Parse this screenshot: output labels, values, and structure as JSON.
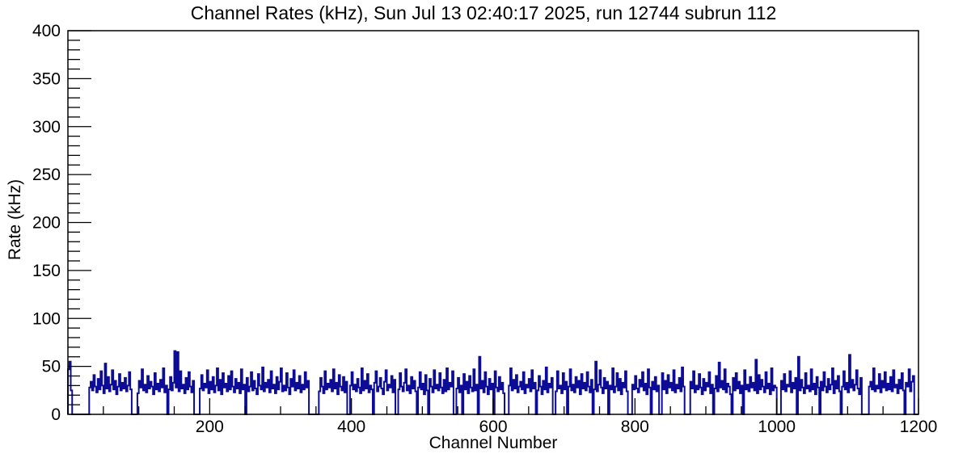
{
  "chart_data": {
    "type": "line",
    "style": "histogram-step",
    "title": "Channel Rates (kHz), Sun Jul 13 02:40:17 2025, run 12744 subrun 112",
    "xlabel": "Channel Number",
    "ylabel": "Rate (kHz)",
    "xlim": [
      0,
      1200
    ],
    "ylim": [
      0,
      400
    ],
    "xticks_major": [
      200,
      400,
      600,
      800,
      1000,
      1200
    ],
    "xticks_minor_step": 50,
    "yticks_major": [
      0,
      50,
      100,
      150,
      200,
      250,
      300,
      350,
      400
    ],
    "yticks_minor_step": 10,
    "grid": "off",
    "legend": "none",
    "line_color": "#0c0c96",
    "frame_color": "#000000",
    "x_start": 0,
    "x_step": 2,
    "values": [
      47,
      55,
      25,
      0,
      0,
      0,
      0,
      0,
      0,
      0,
      0,
      0,
      0,
      0,
      0,
      28,
      34,
      25,
      41,
      29,
      23,
      37,
      26,
      45,
      30,
      22,
      53,
      27,
      39,
      24,
      31,
      46,
      26,
      35,
      21,
      29,
      42,
      25,
      33,
      27,
      38,
      24,
      30,
      44,
      26,
      0,
      0,
      0,
      0,
      22,
      35,
      28,
      47,
      25,
      31,
      23,
      40,
      27,
      34,
      29,
      21,
      43,
      26,
      32,
      24,
      36,
      28,
      48,
      23,
      30,
      0,
      26,
      39,
      25,
      33,
      66,
      28,
      65,
      24,
      45,
      27,
      31,
      22,
      38,
      26,
      44,
      29,
      23,
      35,
      0,
      0,
      0,
      0,
      27,
      41,
      25,
      32,
      28,
      46,
      22,
      34,
      26,
      39,
      23,
      30,
      48,
      25,
      36,
      21,
      43,
      28,
      32,
      24,
      40,
      26,
      45,
      29,
      23,
      37,
      27,
      33,
      22,
      47,
      26,
      31,
      0,
      38,
      24,
      29,
      44,
      25,
      35,
      27,
      21,
      42,
      30,
      26,
      49,
      24,
      33,
      28,
      36,
      23,
      45,
      27,
      31,
      22,
      39,
      26,
      34,
      48,
      24,
      30,
      25,
      43,
      28,
      21,
      37,
      29,
      46,
      25,
      33,
      27,
      40,
      23,
      31,
      26,
      44,
      28,
      35,
      0,
      0,
      0,
      0,
      0,
      0,
      0,
      24,
      38,
      29,
      22,
      45,
      26,
      32,
      28,
      36,
      24,
      47,
      27,
      33,
      21,
      41,
      29,
      25,
      39,
      23,
      34,
      0,
      0,
      30,
      44,
      26,
      31,
      24,
      37,
      28,
      22,
      48,
      25,
      35,
      27,
      42,
      23,
      30,
      26,
      0,
      33,
      45,
      24,
      29,
      38,
      27,
      21,
      34,
      46,
      25,
      31,
      28,
      40,
      23,
      36,
      0,
      0,
      26,
      43,
      29,
      24,
      33,
      47,
      25,
      30,
      22,
      39,
      27,
      35,
      24,
      0,
      28,
      44,
      26,
      32,
      21,
      41,
      25,
      0,
      37,
      29,
      23,
      46,
      27,
      31,
      25,
      43,
      28,
      22,
      36,
      24,
      48,
      26,
      33,
      29,
      45,
      0,
      0,
      27,
      38,
      23,
      30,
      0,
      42,
      26,
      34,
      22,
      40,
      28,
      24,
      47,
      25,
      31,
      0,
      60,
      27,
      35,
      23,
      44,
      29,
      21,
      37,
      26,
      32,
      0,
      45,
      28,
      24,
      39,
      26,
      33,
      22,
      0,
      0,
      0,
      30,
      48,
      25,
      36,
      27,
      41,
      23,
      29,
      34,
      26,
      44,
      22,
      31,
      28,
      37,
      24,
      46,
      27,
      33,
      0,
      25,
      40,
      29,
      21,
      35,
      26,
      49,
      23,
      32,
      28,
      38,
      0,
      0,
      24,
      45,
      27,
      30,
      22,
      43,
      26,
      34,
      0,
      29,
      47,
      25,
      31,
      23,
      39,
      28,
      35,
      21,
      42,
      27,
      33,
      25,
      44,
      29,
      23,
      36,
      0,
      26,
      55,
      24,
      31,
      46,
      28,
      22,
      38,
      27,
      34,
      0,
      30,
      26,
      48,
      23,
      29,
      43,
      25,
      37,
      21,
      33,
      28,
      45,
      24,
      0,
      0,
      0,
      31,
      26,
      40,
      27,
      23,
      36,
      29,
      44,
      25,
      32,
      21,
      47,
      28,
      0,
      34,
      26,
      39,
      24,
      30,
      0,
      0,
      43,
      26,
      35,
      22,
      41,
      28,
      33,
      25,
      46,
      23,
      31,
      27,
      38,
      24,
      49,
      29,
      0,
      0,
      0,
      0,
      34,
      27,
      45,
      23,
      30,
      26,
      42,
      28,
      21,
      37,
      25,
      33,
      29,
      44,
      22,
      31,
      0,
      27,
      40,
      24,
      54,
      28,
      35,
      26,
      47,
      23,
      32,
      29,
      21,
      0,
      38,
      25,
      43,
      27,
      34,
      22,
      30,
      0,
      46,
      26,
      31,
      24,
      39,
      28,
      33,
      25,
      57,
      22,
      41,
      26,
      36,
      29,
      23,
      44,
      27,
      32,
      21,
      48,
      25,
      30,
      28,
      0,
      0,
      0,
      35,
      26,
      42,
      24,
      31,
      29,
      45,
      23,
      33,
      27,
      38,
      0,
      60,
      25,
      36,
      28,
      22,
      43,
      27,
      30,
      24,
      47,
      26,
      32,
      21,
      39,
      28,
      0,
      34,
      25,
      44,
      29,
      23,
      37,
      26,
      31,
      48,
      22,
      35,
      27,
      40,
      24,
      0,
      29,
      45,
      26,
      33,
      23,
      62,
      28,
      36,
      25,
      31,
      46,
      27,
      21,
      38,
      0,
      0,
      0,
      0,
      0,
      29,
      34,
      26,
      48,
      24,
      30,
      27,
      42,
      23,
      35,
      28,
      44,
      25,
      32,
      26,
      39,
      24,
      46,
      28,
      31,
      22,
      36,
      27,
      43,
      25,
      0,
      33,
      29,
      47,
      24,
      34,
      40,
      0,
      0,
      0
    ]
  }
}
